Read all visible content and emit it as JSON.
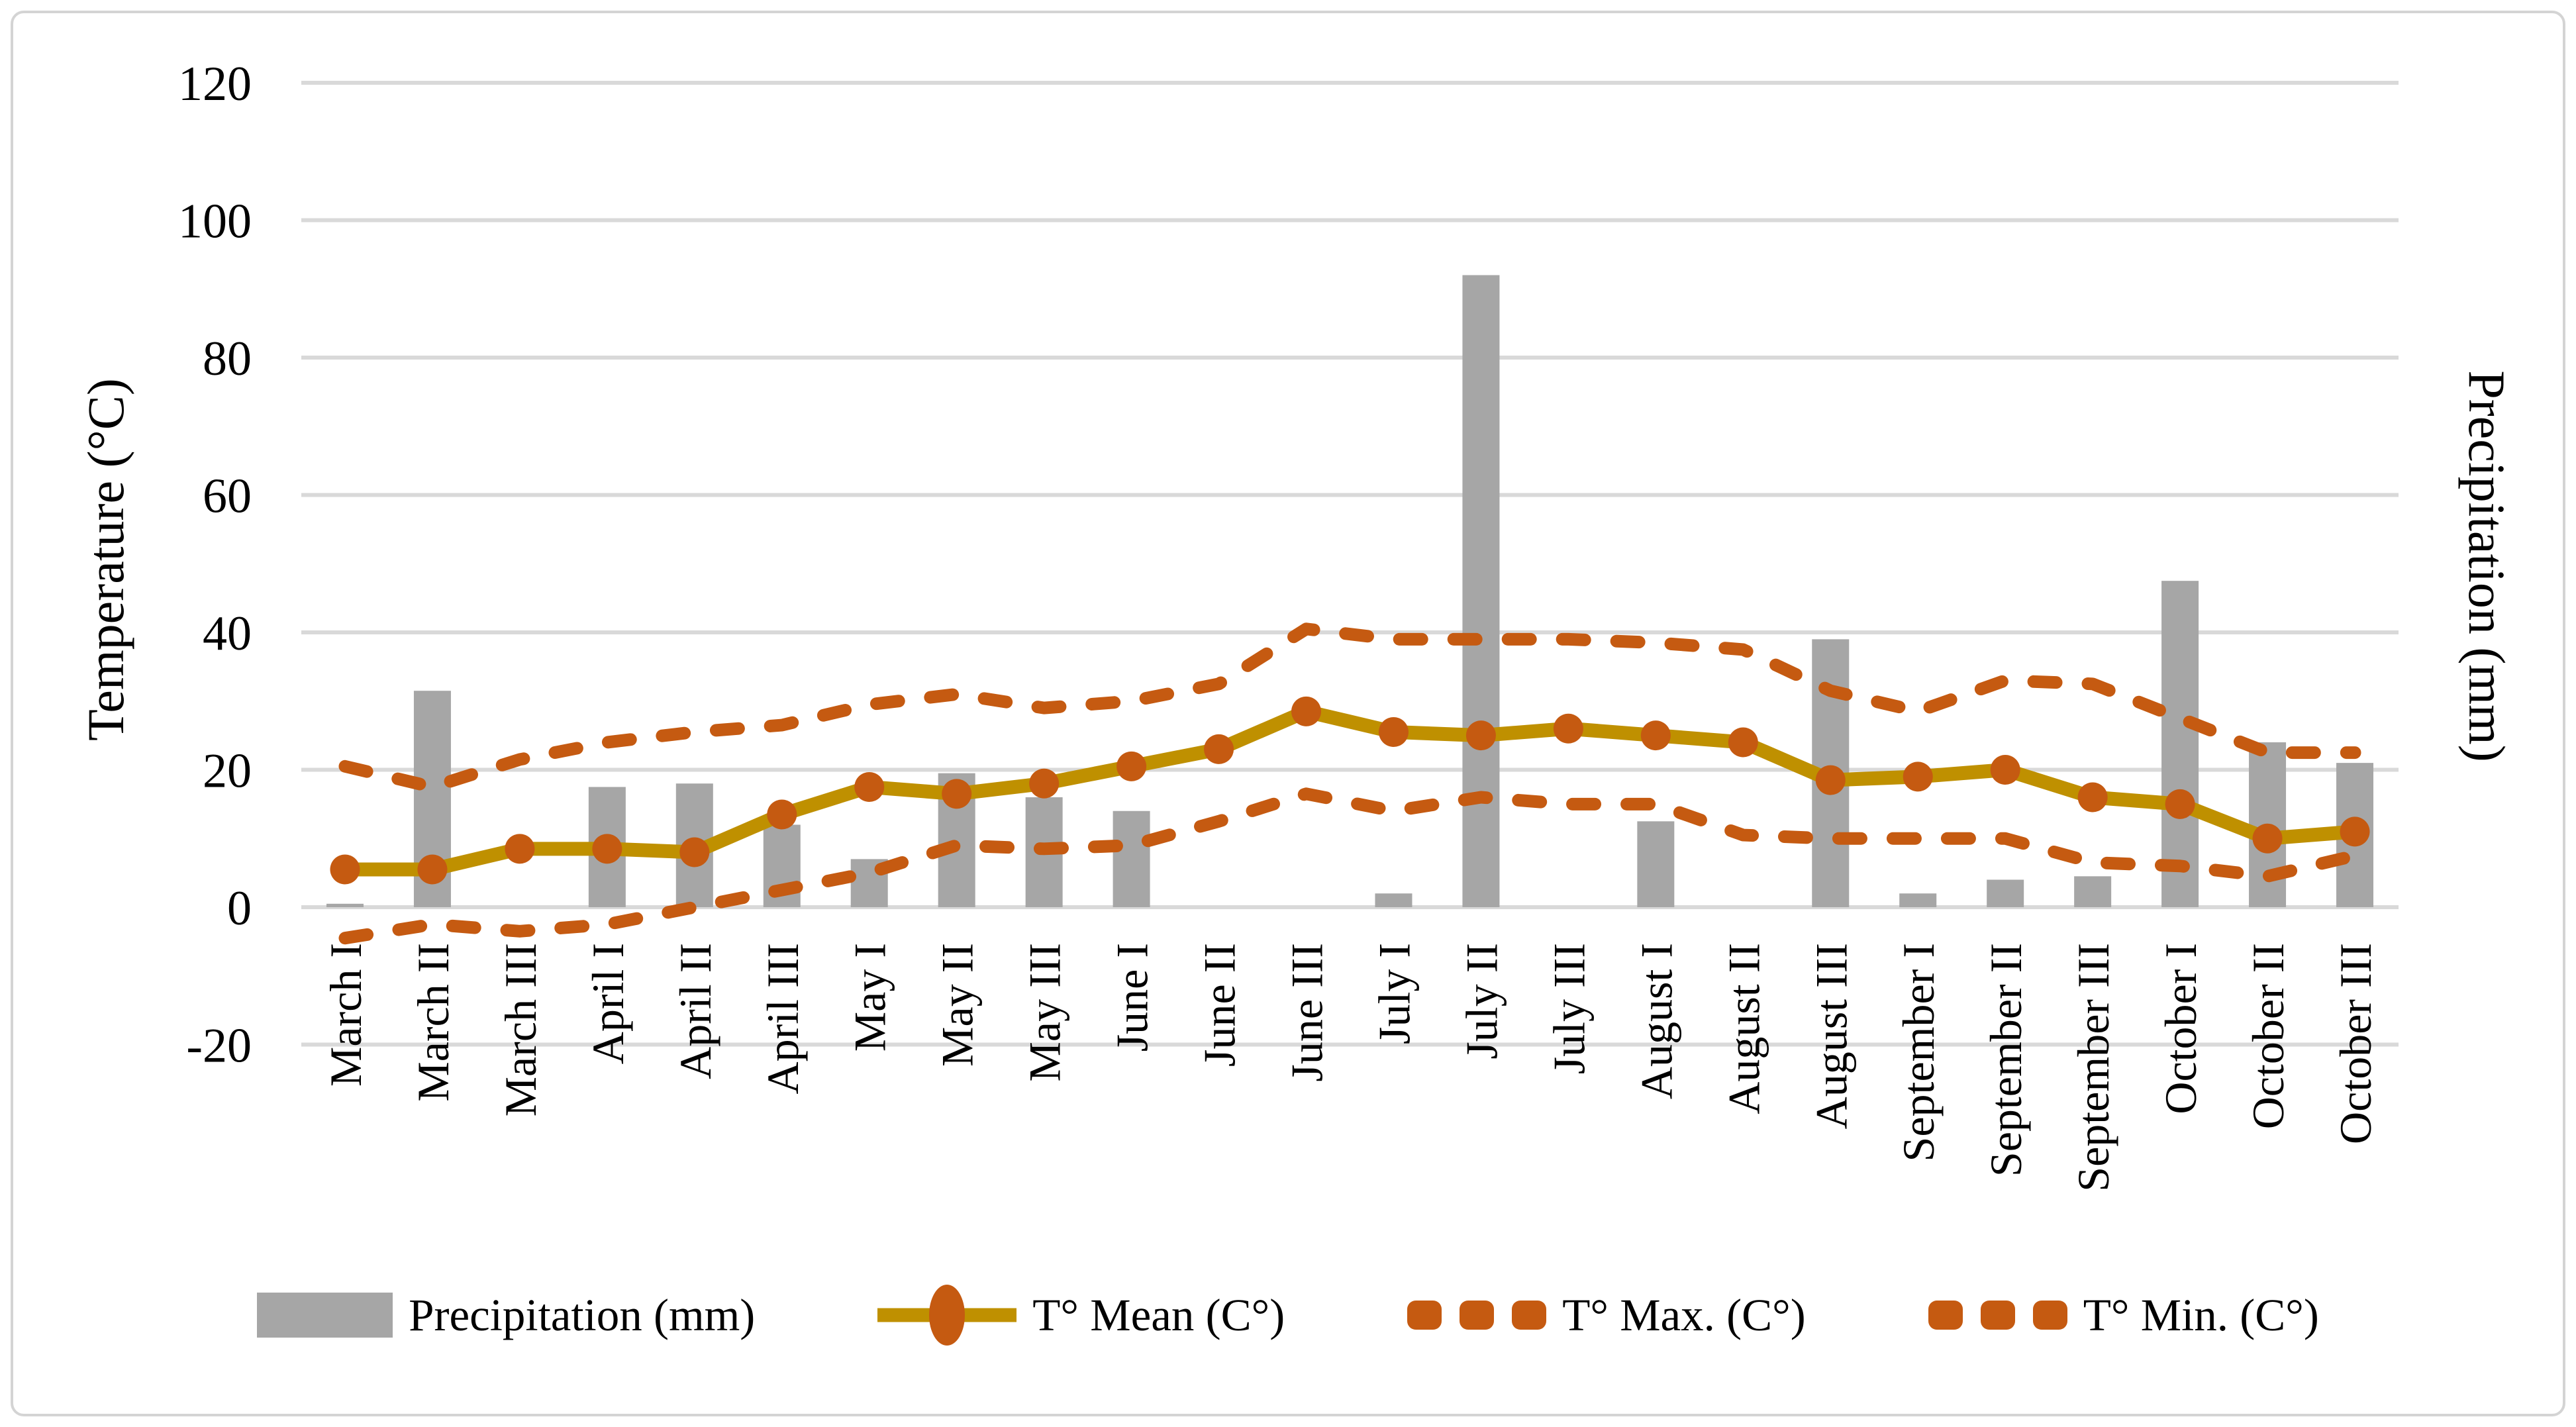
{
  "chart_data": {
    "type": "combo",
    "title": "",
    "categories": [
      "March I",
      "March II",
      "March III",
      "April I",
      "April II",
      "April III",
      "May I",
      "May II",
      "May III",
      "June I",
      "June II",
      "June III",
      "July I",
      "July II",
      "July III",
      "August I",
      "August II",
      "August III",
      "September I",
      "September II",
      "September III",
      "October I",
      "October II",
      "October III"
    ],
    "series": [
      {
        "name": "Precipitation (mm)",
        "kind": "bar",
        "color": "#A6A6A6",
        "axis": "secondary",
        "values": [
          0.5,
          31.5,
          0,
          17.5,
          18,
          12,
          7,
          19.5,
          16,
          14,
          0,
          0,
          2,
          92,
          0,
          12.5,
          0,
          39,
          2,
          4,
          4.5,
          47.5,
          24,
          21
        ]
      },
      {
        "name": "T° Mean (C°)",
        "kind": "line",
        "color": "#BF9000",
        "marker": "circle",
        "marker_color": "#C55A11",
        "values": [
          5.5,
          5.5,
          8.5,
          8.5,
          8,
          13.5,
          17.5,
          16.5,
          18,
          20.5,
          23,
          28.5,
          25.5,
          25,
          26,
          25,
          24,
          18.5,
          19,
          20,
          16,
          15,
          10,
          11
        ]
      },
      {
        "name": "T° Max. (C°)",
        "kind": "line-dashed",
        "color": "#C55A11",
        "values": [
          20.5,
          17.5,
          21.5,
          24,
          25.5,
          26.5,
          29.5,
          31,
          29,
          30,
          32.5,
          40.5,
          39,
          39,
          39,
          38.5,
          37.5,
          31.5,
          28.5,
          33,
          32.5,
          27.5,
          22.5,
          22.5
        ]
      },
      {
        "name": "T° Min. (C°)",
        "kind": "line-dashed",
        "color": "#C55A11",
        "values": [
          -4.5,
          -2.5,
          -3.5,
          -2.5,
          0,
          2.5,
          5,
          9,
          8.5,
          9,
          12.5,
          16.5,
          14,
          16,
          15,
          15,
          10.5,
          10,
          10,
          10,
          6.5,
          6,
          4.5,
          7.5
        ]
      }
    ],
    "xlabel": "",
    "ylabel_left": "Temperature (°C)",
    "ylabel_right": "Precipitation (mm)",
    "y_ticks": [
      120,
      100,
      80,
      60,
      40,
      20,
      0,
      -20
    ],
    "ylim": [
      -20,
      120
    ],
    "grid": true,
    "gridline_color": "#D9D9D9",
    "legend_position": "bottom"
  }
}
